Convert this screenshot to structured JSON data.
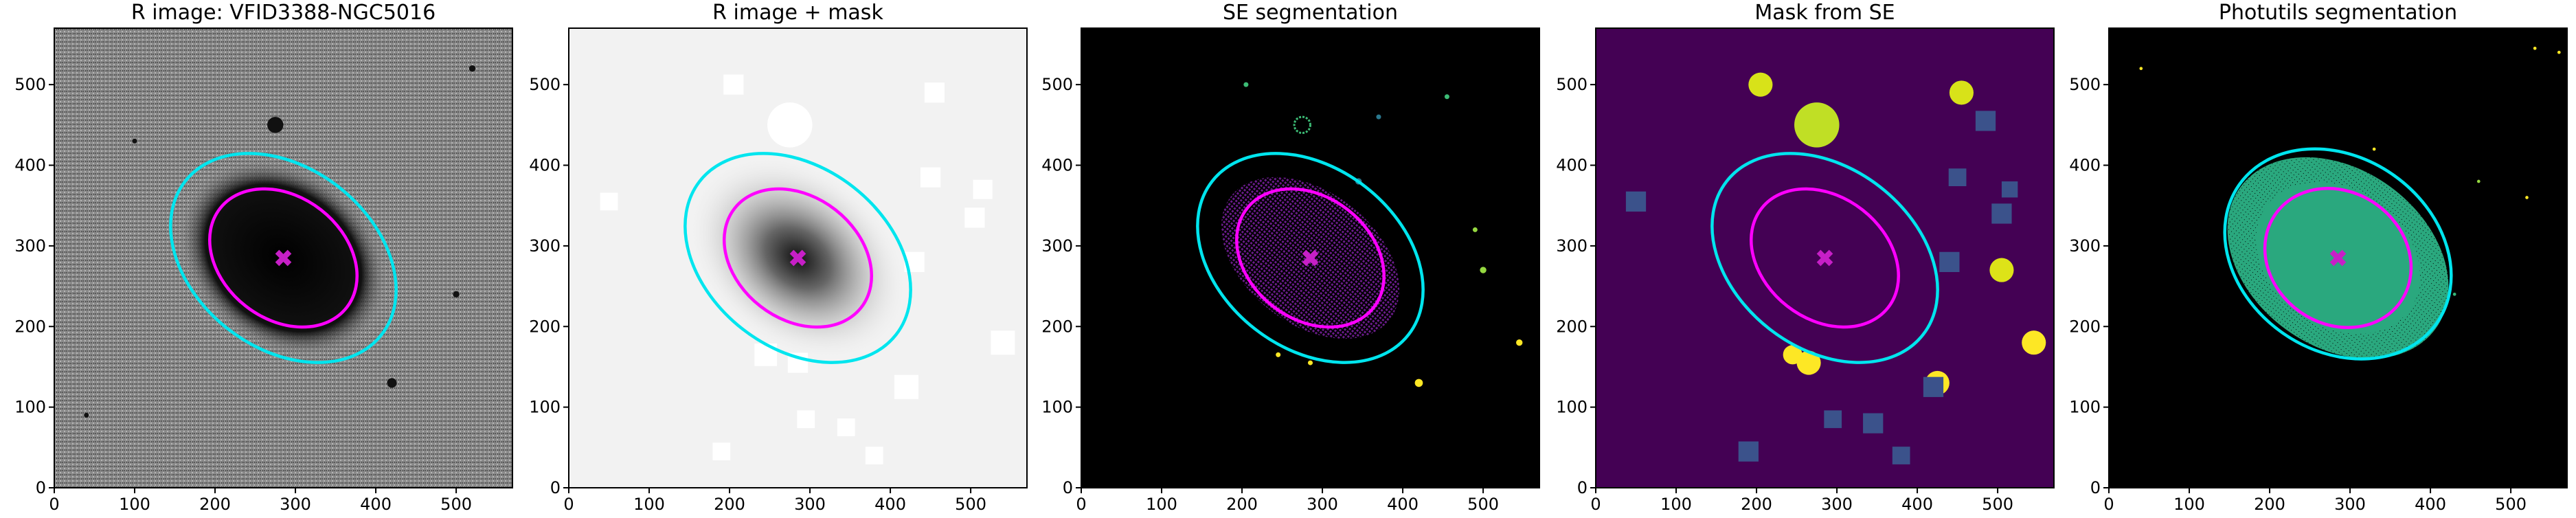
{
  "chart_data": [
    {
      "type": "image",
      "title": "R image: VFID3388-NGC5016",
      "background": "#8a8a8a",
      "xlim": [
        0,
        570
      ],
      "ylim": [
        0,
        570
      ],
      "xticks": [
        0,
        100,
        200,
        300,
        400,
        500
      ],
      "yticks": [
        0,
        100,
        200,
        300,
        400,
        500
      ],
      "ellipses": [
        {
          "color": "#00e5ee",
          "x": 285,
          "y": 285,
          "a": 155,
          "b": 112,
          "angle": -38
        },
        {
          "color": "#ff00ff",
          "x": 285,
          "y": 285,
          "a": 100,
          "b": 76,
          "angle": -38
        }
      ],
      "center": {
        "x": 285,
        "y": 285,
        "color": "#c71fc7"
      }
    },
    {
      "type": "image",
      "title": "R image + mask",
      "background": "#f2f2f2",
      "xlim": [
        0,
        570
      ],
      "ylim": [
        0,
        570
      ],
      "xticks": [
        0,
        100,
        200,
        300,
        400,
        500
      ],
      "yticks": [
        0,
        100,
        200,
        300,
        400,
        500
      ],
      "ellipses": [
        {
          "color": "#00e5ee",
          "x": 285,
          "y": 285,
          "a": 155,
          "b": 112,
          "angle": -38
        },
        {
          "color": "#ff00ff",
          "x": 285,
          "y": 285,
          "a": 100,
          "b": 76,
          "angle": -38
        }
      ],
      "center": {
        "x": 285,
        "y": 285,
        "color": "#c71fc7"
      }
    },
    {
      "type": "image",
      "title": "SE segmentation",
      "background": "#000000",
      "xlim": [
        0,
        570
      ],
      "ylim": [
        0,
        570
      ],
      "xticks": [
        0,
        100,
        200,
        300,
        400,
        500
      ],
      "yticks": [
        0,
        100,
        200,
        300,
        400,
        500
      ],
      "ellipses": [
        {
          "color": "#00e5ee",
          "x": 285,
          "y": 285,
          "a": 155,
          "b": 112,
          "angle": -38
        },
        {
          "color": "#ff00ff",
          "x": 285,
          "y": 285,
          "a": 100,
          "b": 76,
          "angle": -38
        }
      ],
      "center": {
        "x": 285,
        "y": 285,
        "color": "#c71fc7"
      }
    },
    {
      "type": "image",
      "title": "Mask from SE",
      "background": "#440154",
      "xlim": [
        0,
        570
      ],
      "ylim": [
        0,
        570
      ],
      "xticks": [
        0,
        100,
        200,
        300,
        400,
        500
      ],
      "yticks": [
        0,
        100,
        200,
        300,
        400,
        500
      ],
      "ellipses": [
        {
          "color": "#00e5ee",
          "x": 285,
          "y": 285,
          "a": 155,
          "b": 112,
          "angle": -38
        },
        {
          "color": "#ff00ff",
          "x": 285,
          "y": 285,
          "a": 100,
          "b": 76,
          "angle": -38
        }
      ],
      "center": {
        "x": 285,
        "y": 285,
        "color": "#c71fc7"
      }
    },
    {
      "type": "image",
      "title": "Photutils segmentation",
      "background": "#000000",
      "xlim": [
        0,
        570
      ],
      "ylim": [
        0,
        570
      ],
      "xticks": [
        0,
        100,
        200,
        300,
        400,
        500
      ],
      "yticks": [
        0,
        100,
        200,
        300,
        400,
        500
      ],
      "ellipses": [
        {
          "color": "#00e5ee",
          "x": 285,
          "y": 290,
          "a": 150,
          "b": 120,
          "angle": -35
        },
        {
          "color": "#ff00ff",
          "x": 285,
          "y": 285,
          "a": 95,
          "b": 82,
          "angle": -35
        }
      ],
      "center": {
        "x": 285,
        "y": 285,
        "color": "#c71fc7"
      }
    }
  ]
}
